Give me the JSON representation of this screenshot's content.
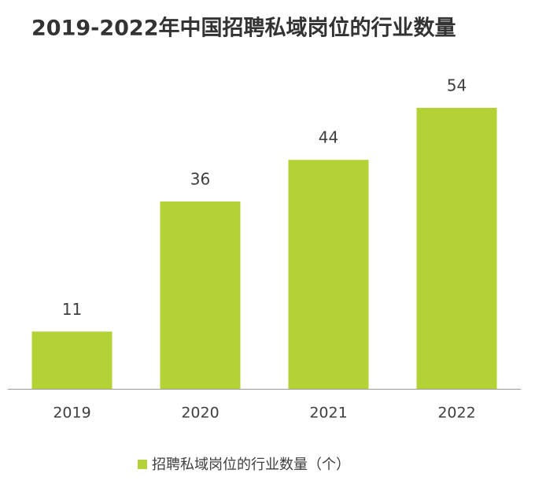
{
  "chart_data": {
    "type": "bar",
    "title": "2019-2022年中国招聘私域岗位的行业数量",
    "categories": [
      "2019",
      "2020",
      "2021",
      "2022"
    ],
    "series": [
      {
        "name": "招聘私域岗位的行业数量（个）",
        "color": "#b3d235",
        "values": [
          11,
          36,
          44,
          54
        ]
      }
    ],
    "legend": "bottom"
  }
}
